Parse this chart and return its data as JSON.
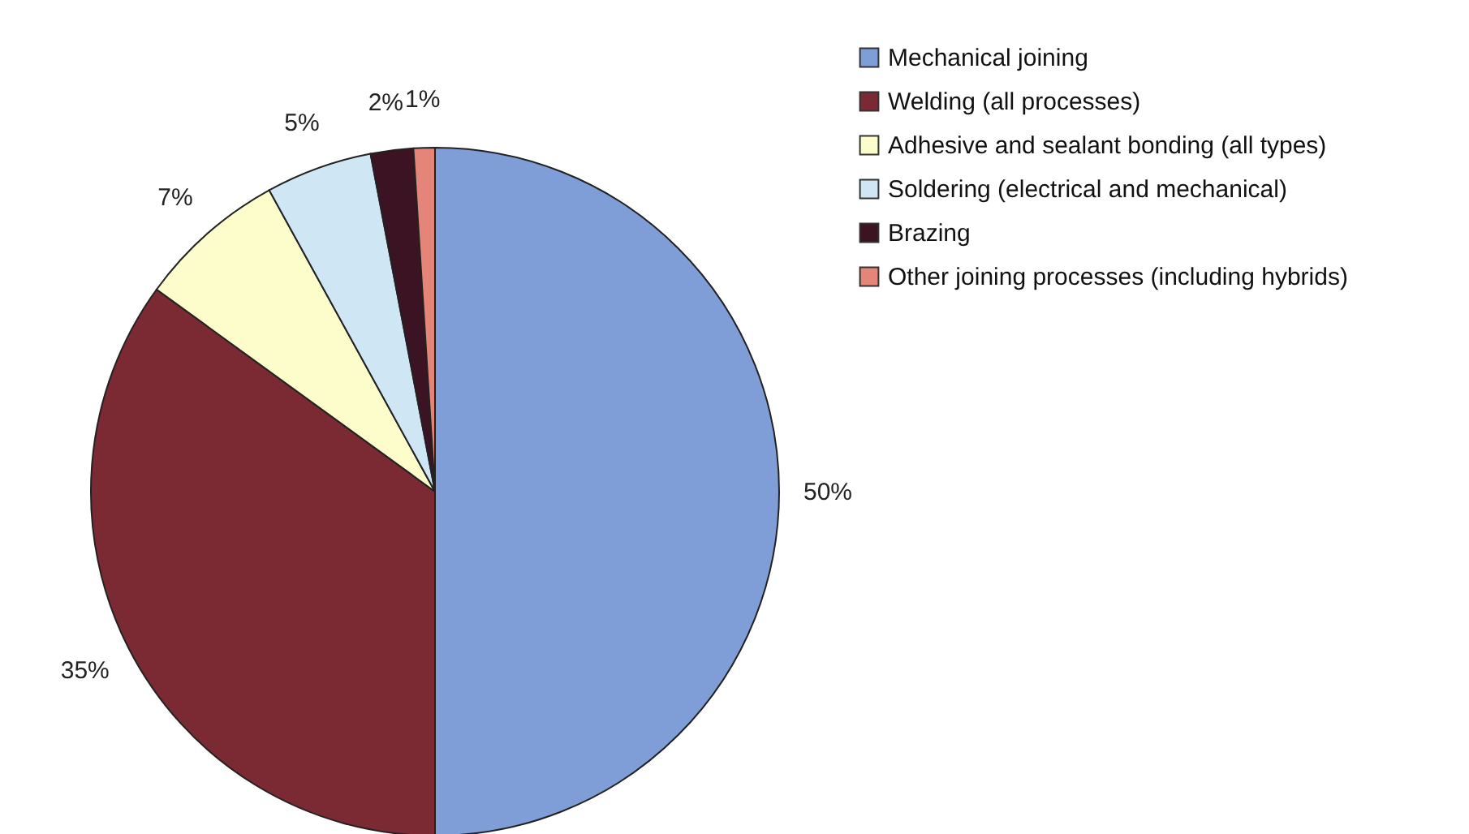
{
  "chart_data": {
    "type": "pie",
    "categories": [
      "Mechanical joining",
      "Welding (all processes)",
      "Adhesive and sealant bonding (all types)",
      "Soldering (electrical and mechanical)",
      "Brazing",
      "Other joining processes (including hybrids)"
    ],
    "values": [
      50,
      35,
      7,
      5,
      2,
      1
    ],
    "value_labels": [
      "50%",
      "35%",
      "7%",
      "5%",
      "2%",
      "1%"
    ],
    "colors": [
      "#7f9ed8",
      "#7b2a33",
      "#fdfccb",
      "#cfe6f4",
      "#3b1322",
      "#e58478"
    ],
    "legend": "top right"
  }
}
